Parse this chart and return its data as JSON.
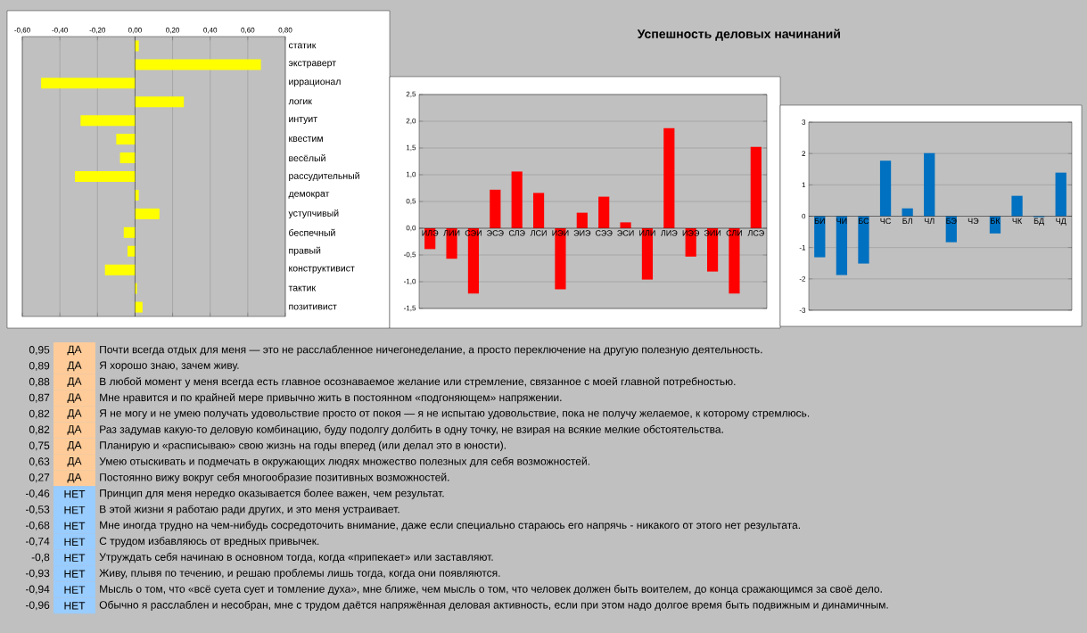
{
  "chart_data": [
    {
      "type": "bar",
      "orientation": "horizontal",
      "color": "#ffff00",
      "grid": "x",
      "categories": [
        "статик",
        "экстраверт",
        "иррационал",
        "логик",
        "интуит",
        "квестим",
        "весёлый",
        "рассудительный",
        "демократ",
        "уступчивый",
        "беспечный",
        "правый",
        "конструктивист",
        "тактик",
        "позитивист"
      ],
      "values": [
        0.02,
        0.67,
        -0.5,
        0.26,
        -0.29,
        -0.1,
        -0.08,
        -0.32,
        0.02,
        0.13,
        -0.06,
        -0.04,
        -0.16,
        0.01,
        0.04
      ],
      "xlim": [
        -0.6,
        0.8
      ],
      "xticks": [
        {
          "value": -0.6,
          "label": "-0,60"
        },
        {
          "value": -0.4,
          "label": "-0,40"
        },
        {
          "value": -0.2,
          "label": "-0,20"
        },
        {
          "value": 0,
          "label": "0,00"
        },
        {
          "value": 0.2,
          "label": "0,20"
        },
        {
          "value": 0.4,
          "label": "0,40"
        },
        {
          "value": 0.6,
          "label": "0,60"
        },
        {
          "value": 0.8,
          "label": "0,80"
        }
      ]
    },
    {
      "type": "bar",
      "title": "Успешность деловых начинаний",
      "color": "#ff0000",
      "grid": "y",
      "categories": [
        "ИЛЭ",
        "ЛИИ",
        "СЭИ",
        "ЭСЭ",
        "СЛЭ",
        "ЛСИ",
        "ИЭИ",
        "ЭИЭ",
        "СЭЭ",
        "ЭСИ",
        "ИЛИ",
        "ЛИЭ",
        "ИЭЭ",
        "ЭИИ",
        "СЛИ",
        "ЛСЭ"
      ],
      "values": [
        -0.39,
        -0.57,
        -1.22,
        0.72,
        1.06,
        0.66,
        -1.14,
        0.29,
        0.59,
        0.11,
        -0.96,
        1.87,
        -0.53,
        -0.81,
        -1.22,
        1.52
      ],
      "ylim": [
        -1.5,
        2.5
      ],
      "yticks": [
        {
          "value": -1.5,
          "label": "-1,5"
        },
        {
          "value": -1,
          "label": "-1,0"
        },
        {
          "value": -0.5,
          "label": "-0,5"
        },
        {
          "value": 0,
          "label": "0,0"
        },
        {
          "value": 0.5,
          "label": "0,5"
        },
        {
          "value": 1,
          "label": "1,0"
        },
        {
          "value": 1.5,
          "label": "1,5"
        },
        {
          "value": 2,
          "label": "2,0"
        },
        {
          "value": 2.5,
          "label": "2,5"
        }
      ]
    },
    {
      "type": "bar",
      "color": "#0070c0",
      "grid": "y",
      "categories": [
        "БИ",
        "ЧИ",
        "БС",
        "ЧС",
        "БЛ",
        "ЧЛ",
        "БЭ",
        "ЧЭ",
        "БК",
        "ЧК",
        "БД",
        "ЧД"
      ],
      "values": [
        -1.31,
        -1.88,
        -1.51,
        1.77,
        0.25,
        2.01,
        -0.83,
        0,
        -0.55,
        0.65,
        -0.03,
        1.39
      ],
      "ylim": [
        -3,
        3
      ],
      "yticks": [
        -3,
        -2,
        -1,
        0,
        1,
        2,
        3
      ]
    },
    {
      "type": "other",
      "value_labels": [
        "0,95",
        "0,89",
        "0,88",
        "0,87",
        "0,82",
        "0,82",
        "0,75",
        "0,63",
        "0,27",
        "-0,46",
        "-0,53",
        "-0,68",
        "-0,74",
        "-0,8",
        "-0,93",
        "-0,94",
        "-0,96"
      ],
      "categories": [
        "Почти всегда отдых для меня — это не расслабленное ничегонеделание, а просто переключение на другую полезную деятельность.",
        "Я хорошо знаю, зачем живу.",
        "В любой момент у меня всегда есть главное осознаваемое желание или стремление, связанное с моей главной потребностью.",
        "Мне нравится и по крайней мере привычно жить в постоянном «подгоняющем» напряжении.",
        "Я не могу и не умею получать удовольствие просто от покоя — я не испытаю удовольствие, пока не получу желаемое, к которому стремлюсь.",
        "Раз задумав какую-то деловую комбинацию, буду подолгу долбить в одну точку, не взирая на всякие мелкие обстоятельства.",
        "Планирую и «расписываю» свою жизнь на годы вперед (или делал это в юности).",
        "Умею отыскивать и подмечать в окружающих людях множество полезных для себя возможностей.",
        "Постоянно вижу вокруг себя многообразие позитивных возможностей.",
        "Принцип для меня нередко оказывается более важен, чем результат.",
        "В этой жизни я работаю ради других, и это меня устраивает.",
        "Мне иногда трудно на чем-нибудь сосредоточить внимание, даже если специально стараюсь его напрячь - никакого от этого нет результата.",
        "С трудом избавляюсь от вредных привычек.",
        "Утруждать себя начинаю в основном тогда, когда «припекает» или заставляют.",
        "Живу, плывя по течению, и решаю проблемы лишь тогда, когда они появляются.",
        "Мысль о том, что «всё суета сует и томление духа», мне ближе, чем мысль о том, что человек должен быть воителем, до конца сражающимся за своё дело.",
        "Обычно я расслаблен и несобран, мне с трудом даётся напряжённая деловая активность, если при этом надо долгое время быть подвижным и динамичным."
      ],
      "values": [
        0.95,
        0.89,
        0.88,
        0.87,
        0.82,
        0.82,
        0.75,
        0.63,
        0.27,
        -0.46,
        -0.53,
        -0.68,
        -0.74,
        -0.8,
        -0.93,
        -0.94,
        -0.96
      ],
      "annotations": [
        "ДА",
        "ДА",
        "ДА",
        "ДА",
        "ДА",
        "ДА",
        "ДА",
        "ДА",
        "ДА",
        "НЕТ",
        "НЕТ",
        "НЕТ",
        "НЕТ",
        "НЕТ",
        "НЕТ",
        "НЕТ",
        "НЕТ"
      ],
      "colors": [
        "#ffcc99",
        "#ffcc99",
        "#ffcc99",
        "#ffcc99",
        "#ffcc99",
        "#ffcc99",
        "#ffcc99",
        "#ffcc99",
        "#ffcc99",
        "#99ccff",
        "#99ccff",
        "#99ccff",
        "#99ccff",
        "#99ccff",
        "#99ccff",
        "#99ccff",
        "#99ccff"
      ]
    }
  ]
}
